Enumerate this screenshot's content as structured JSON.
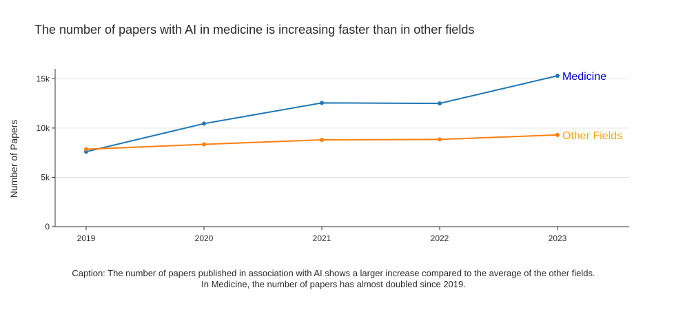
{
  "chart_data": {
    "type": "line",
    "title": "The number of papers with AI in medicine is increasing faster than in other fields",
    "xlabel": "",
    "ylabel": "Number of Papers",
    "x": [
      "2019",
      "2020",
      "2021",
      "2022",
      "2023"
    ],
    "yticks": [
      0,
      5000,
      10000,
      15000
    ],
    "ytick_labels": [
      "0",
      "5k",
      "10k",
      "15k"
    ],
    "ylim": [
      0,
      16000
    ],
    "grid": true,
    "series": [
      {
        "name": "Medicine",
        "color": "#1f77b4",
        "label_color": "#0000cc",
        "values": [
          7600,
          10450,
          12550,
          12500,
          15300
        ]
      },
      {
        "name": "Other Fields",
        "color": "#ff7f0e",
        "label_color": "#ffa500",
        "values": [
          7850,
          8350,
          8800,
          8850,
          9300
        ]
      }
    ]
  },
  "caption": {
    "line1": "Caption: The number of papers published in association with AI shows a larger increase compared to the average of the other fields.",
    "line2": "In Medicine, the number of papers has almost doubled since 2019."
  }
}
